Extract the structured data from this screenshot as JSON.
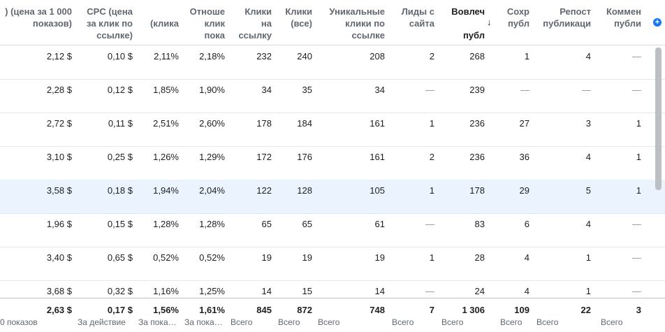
{
  "headers": [
    {
      "lines": [
        ") (цена за 1 000",
        "показов)"
      ]
    },
    {
      "lines": [
        "CPC (цена",
        "за клик по",
        "ссылке)"
      ]
    },
    {
      "lines": [
        "",
        "(клика"
      ]
    },
    {
      "lines": [
        "Отноше",
        "клик",
        "пока"
      ]
    },
    {
      "lines": [
        "Клики",
        "на",
        "ссылку"
      ]
    },
    {
      "lines": [
        "Клики",
        "(все)"
      ]
    },
    {
      "lines": [
        "Уникальные",
        "клики по",
        "ссылке"
      ]
    },
    {
      "lines": [
        "Лиды с",
        "сайта"
      ]
    },
    {
      "lines": [
        "Вовлеч",
        "",
        "публ"
      ]
    },
    {
      "lines": [
        "Сохр",
        "публ"
      ]
    },
    {
      "lines": [
        "Репост",
        "публикаци"
      ]
    },
    {
      "lines": [
        "Коммен",
        "публи"
      ]
    }
  ],
  "sort_arrow": "↓",
  "add_column_icon": "+",
  "rows": [
    [
      "2,12 $",
      "0,10 $",
      "2,11%",
      "2,18%",
      "232",
      "240",
      "208",
      "2",
      "268",
      "1",
      "4",
      "—"
    ],
    [
      "2,28 $",
      "0,12 $",
      "1,85%",
      "1,90%",
      "34",
      "35",
      "34",
      "—",
      "239",
      "—",
      "—",
      "—"
    ],
    [
      "2,72 $",
      "0,11 $",
      "2,51%",
      "2,60%",
      "178",
      "184",
      "161",
      "1",
      "236",
      "27",
      "3",
      "1"
    ],
    [
      "3,10 $",
      "0,25 $",
      "1,26%",
      "1,29%",
      "172",
      "176",
      "161",
      "2",
      "236",
      "36",
      "4",
      "1"
    ],
    [
      "3,58 $",
      "0,18 $",
      "1,94%",
      "2,04%",
      "122",
      "128",
      "105",
      "1",
      "178",
      "29",
      "5",
      "1"
    ],
    [
      "1,96 $",
      "0,15 $",
      "1,28%",
      "1,28%",
      "65",
      "65",
      "61",
      "—",
      "83",
      "6",
      "4",
      "—"
    ],
    [
      "3,40 $",
      "0,65 $",
      "0,52%",
      "0,52%",
      "19",
      "19",
      "19",
      "1",
      "28",
      "4",
      "1",
      "—"
    ],
    [
      "3,68 $",
      "0,32 $",
      "1,16%",
      "1,25%",
      "14",
      "15",
      "14",
      "—",
      "24",
      "4",
      "1",
      "—"
    ]
  ],
  "highlighted_row": 4,
  "totals": [
    "2,63 $",
    "0,17 $",
    "1,56%",
    "1,61%",
    "845",
    "872",
    "748",
    "7",
    "1 306",
    "109",
    "22",
    "3"
  ],
  "totals_sub": [
    "0 показов",
    "За действие",
    "За пока…",
    "За пока…",
    "Всего",
    "Всего",
    "Всего",
    "Всего",
    "Всего",
    "Всего",
    "Всего",
    "Всего"
  ]
}
